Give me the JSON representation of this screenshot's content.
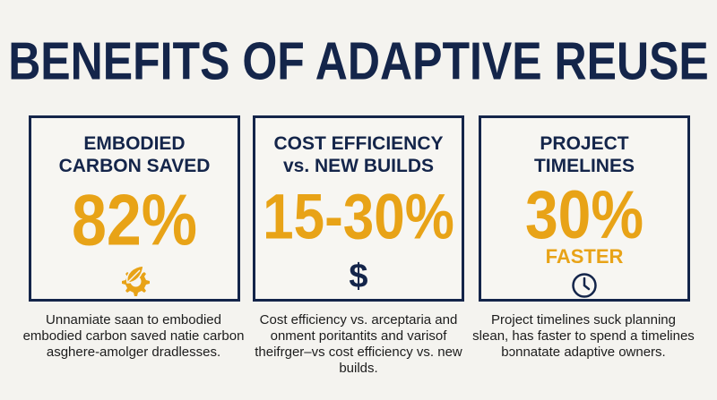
{
  "title": "BENEFITS OF ADAPTIVE REUSE",
  "colors": {
    "navy": "#14254a",
    "gold": "#e8a317",
    "background": "#f4f3ef"
  },
  "cards": [
    {
      "heading_line1": "EMBODIED",
      "heading_line2": "CARBON SAVED",
      "value": "82%",
      "icon": "leaf-gear-icon",
      "description": "Unnamiate saan to embodied embodied carbon saved natie carbon asghere-amolger dradlesses."
    },
    {
      "heading_line1": "COST EFFICIENCY",
      "heading_line2": "vs. NEW BUILDS",
      "value": "15-30%",
      "icon": "dollar-icon",
      "icon_glyph": "$",
      "description": "Cost efficiency vs. arceptaria and onment poritantits and varisof theifrger–vs cost efficiency vs. new builds."
    },
    {
      "heading_line1": "PROJECT",
      "heading_line2": "TIMELINES",
      "value": "30%",
      "value_sub": "FASTER",
      "icon": "clock-icon",
      "description": "Project timelines suck planning slean, has faster to spend a timelines bɔnnatate adaptive owners."
    }
  ]
}
